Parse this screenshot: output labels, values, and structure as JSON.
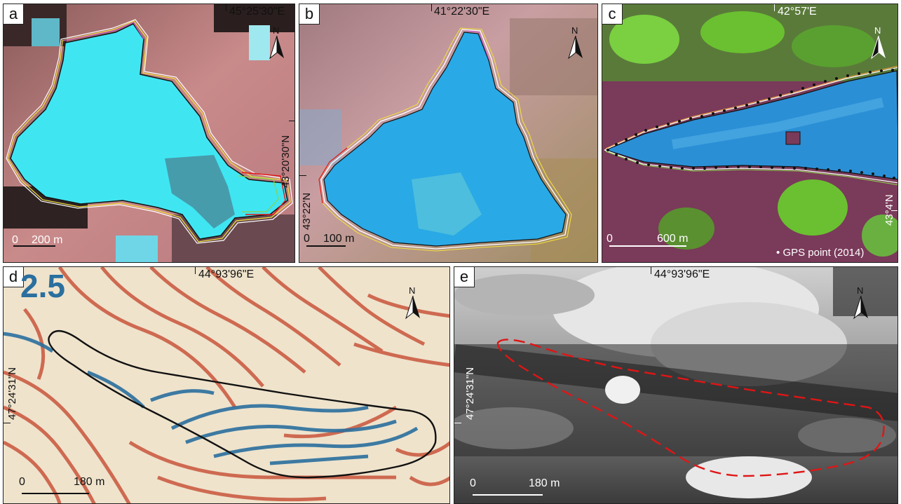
{
  "panels": {
    "a": {
      "label": "a",
      "lon": "45°25'30\"E",
      "lat": "43°20'30\"N",
      "scale_zero": "0",
      "scale_end": "200 m"
    },
    "b": {
      "label": "b",
      "lon": "41°22'30\"E",
      "lat": "43°22'N",
      "scale_zero": "0",
      "scale_end": "100 m"
    },
    "c": {
      "label": "c",
      "lon": "42°57'E",
      "lat": "43°4'N",
      "scale_zero": "0",
      "scale_end": "600 m",
      "legend": "GPS point (2014)"
    },
    "d": {
      "label": "d",
      "lon": "44°93'96\"E",
      "lat": "47°24'31\"N",
      "scale_zero": "0",
      "scale_end": "180 m",
      "map_text": "2.5"
    },
    "e": {
      "label": "e",
      "lon": "44°93'96\"E",
      "lat": "47°24'31\"N",
      "scale_zero": "0",
      "scale_end": "180 m"
    }
  },
  "north_label": "N",
  "colors": {
    "lake_cyan": "#3fe6f2",
    "lake_blue": "#29a9e6",
    "terrain_pink": "#c98a8a",
    "contour_red": "#c9553c",
    "contour_blue": "#2a6f9e",
    "dashed_red": "#e01515"
  }
}
